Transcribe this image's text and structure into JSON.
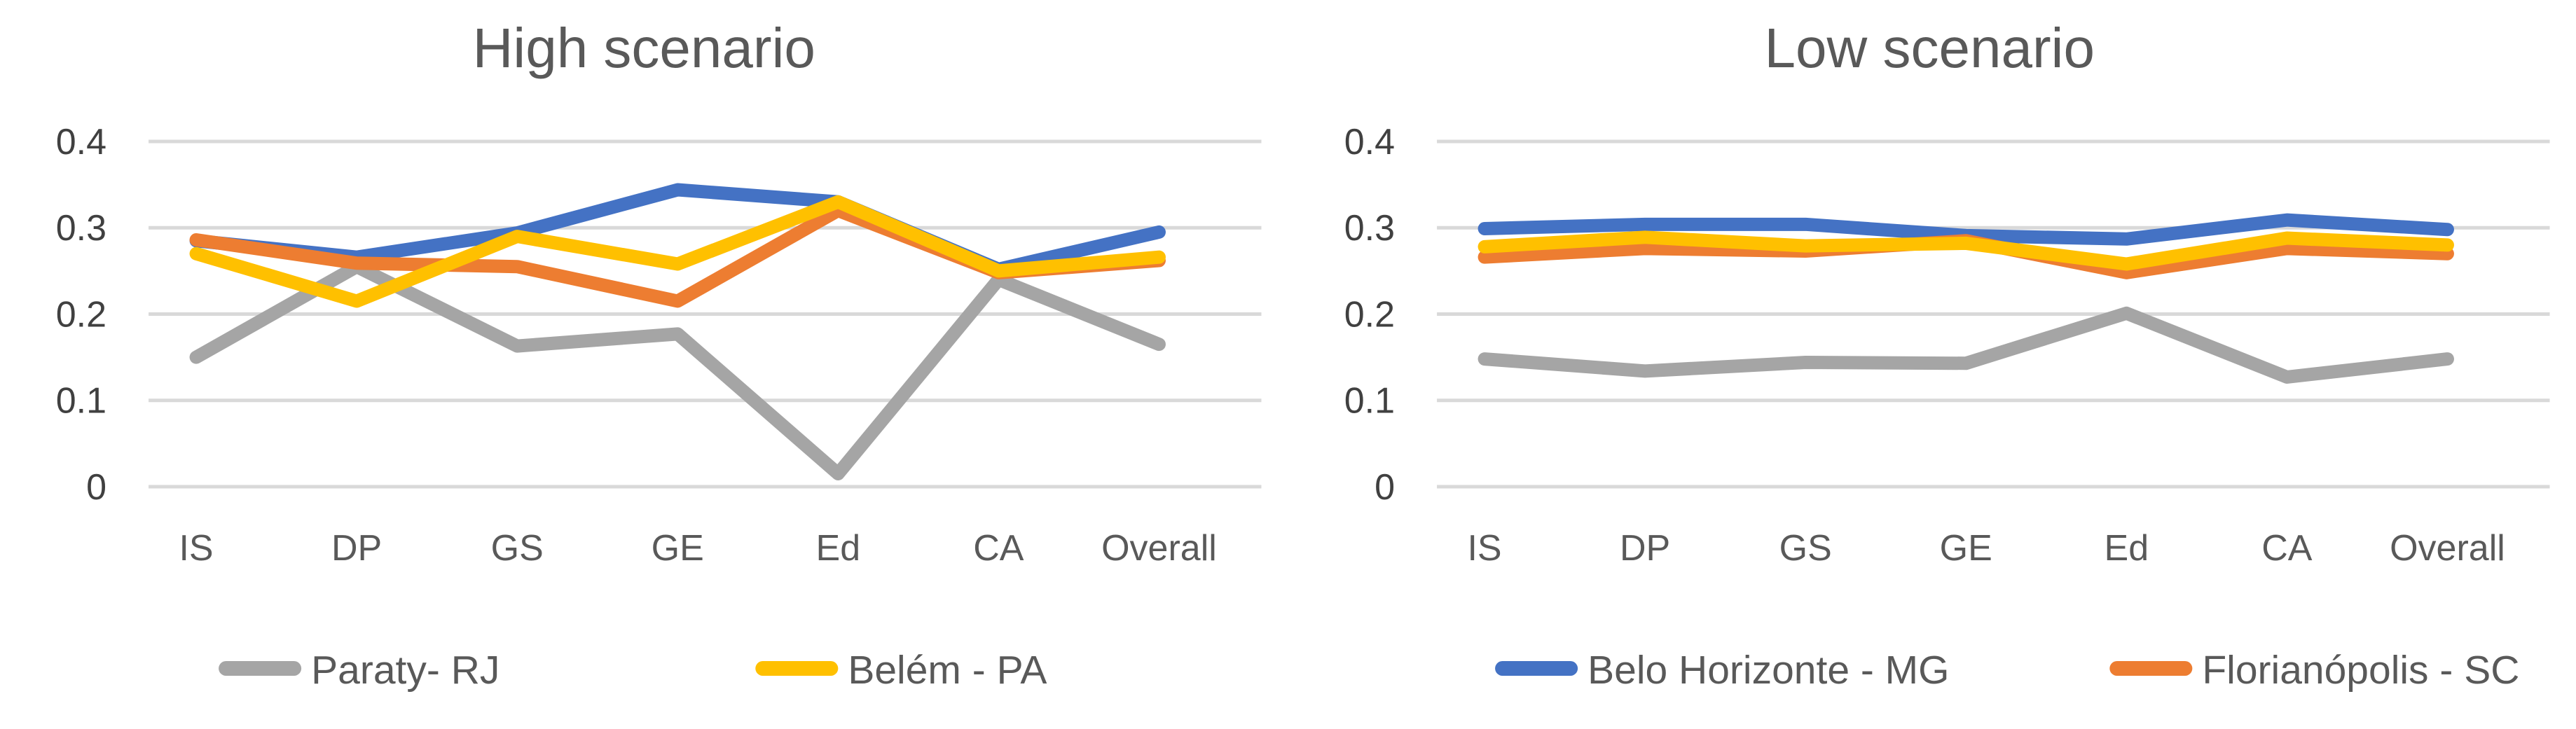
{
  "figure": {
    "background": "#FFFFFF",
    "text_color": "#595959",
    "gridline_color": "#D9D9D9"
  },
  "chart_data": [
    {
      "type": "line",
      "title": "High scenario",
      "xlabel": "",
      "ylabel": "",
      "categories": [
        "IS",
        "DP",
        "GS",
        "GE",
        "Ed",
        "CA",
        "Overall"
      ],
      "ylim": [
        0,
        0.4
      ],
      "grid": true,
      "legend_position": "bottom",
      "y_ticks": [
        {
          "value": 0.4,
          "label": "0.4"
        },
        {
          "value": 0.3,
          "label": "0.3"
        },
        {
          "value": 0.2,
          "label": "0.2"
        },
        {
          "value": 0.1,
          "label": "0.1"
        },
        {
          "value": 0.0,
          "label": "0"
        }
      ],
      "series": [
        {
          "name": "Paraty- RJ",
          "color": "#A5A5A5",
          "values": [
            0.15,
            0.255,
            0.163,
            0.177,
            0.015,
            0.24,
            0.165
          ]
        },
        {
          "name": "Belo Horizonte - MG",
          "color": "#4472C4",
          "values": [
            0.285,
            0.266,
            0.294,
            0.344,
            0.33,
            0.252,
            0.295
          ]
        },
        {
          "name": "Florianópolis - SC",
          "color": "#ED7D31",
          "values": [
            0.286,
            0.259,
            0.255,
            0.215,
            0.32,
            0.248,
            0.262
          ]
        },
        {
          "name": "Belém - PA",
          "color": "#FFC000",
          "values": [
            0.27,
            0.215,
            0.29,
            0.258,
            0.33,
            0.25,
            0.266
          ]
        }
      ],
      "legend": [
        "Paraty- RJ",
        "Belém - PA"
      ]
    },
    {
      "type": "line",
      "title": "Low scenario",
      "xlabel": "",
      "ylabel": "",
      "categories": [
        "IS",
        "DP",
        "GS",
        "GE",
        "Ed",
        "CA",
        "Overall"
      ],
      "ylim": [
        0,
        0.4
      ],
      "grid": true,
      "legend_position": "bottom",
      "y_ticks": [
        {
          "value": 0.4,
          "label": "0.4"
        },
        {
          "value": 0.3,
          "label": "0.3"
        },
        {
          "value": 0.2,
          "label": "0.2"
        },
        {
          "value": 0.1,
          "label": "0.1"
        },
        {
          "value": 0.0,
          "label": "0"
        }
      ],
      "series": [
        {
          "name": "Paraty- RJ",
          "color": "#A5A5A5",
          "values": [
            0.148,
            0.134,
            0.144,
            0.143,
            0.201,
            0.127,
            0.148
          ]
        },
        {
          "name": "Belo Horizonte - MG",
          "color": "#4472C4",
          "values": [
            0.299,
            0.304,
            0.304,
            0.291,
            0.287,
            0.309,
            0.298
          ]
        },
        {
          "name": "Florianópolis - SC",
          "color": "#ED7D31",
          "values": [
            0.266,
            0.276,
            0.273,
            0.285,
            0.248,
            0.276,
            0.27
          ]
        },
        {
          "name": "Belém - PA",
          "color": "#FFC000",
          "values": [
            0.278,
            0.289,
            0.279,
            0.282,
            0.258,
            0.288,
            0.28
          ]
        }
      ],
      "legend": [
        "Belo Horizonte - MG",
        "Florianópolis - SC"
      ]
    }
  ]
}
